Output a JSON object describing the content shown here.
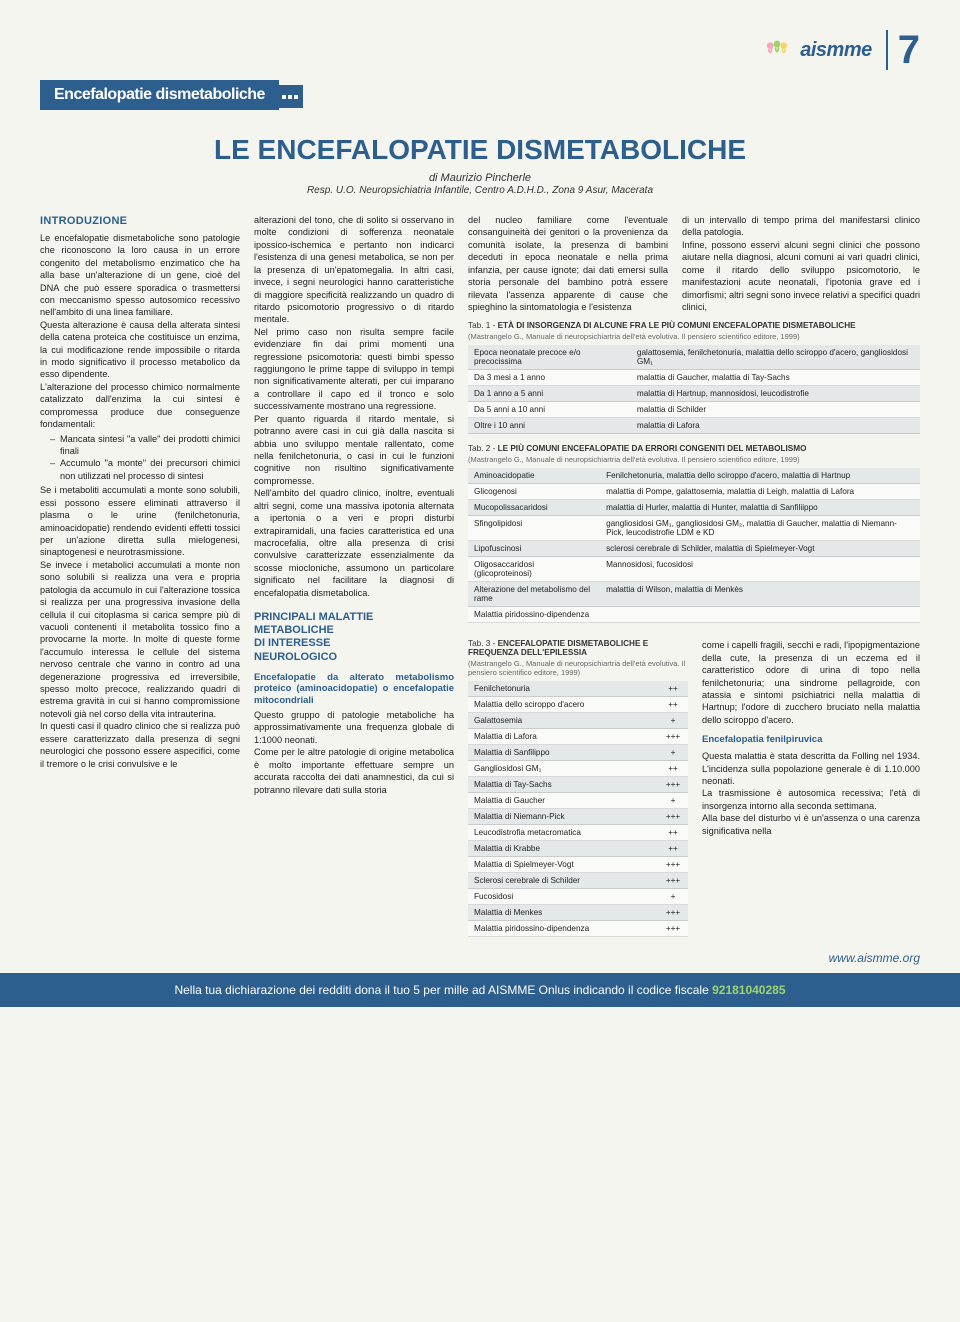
{
  "brand": {
    "name": "aismme",
    "page_num": "7",
    "website": "www.aismme.org"
  },
  "section_tab": "Encefalopatie dismetaboliche",
  "title": "LE ENCEFALOPATIE DISMETABOLICHE",
  "author": "di Maurizio Pincherle",
  "affil": "Resp. U.O. Neuropsichiatria Infantile, Centro A.D.H.D., Zona 9 Asur, Macerata",
  "intro_heading": "INTRODUZIONE",
  "col1_p1": "Le encefalopatie dismetaboliche sono patologie che riconoscono la loro causa in un errore congenito del metabolismo enzimatico che ha alla base un'alterazione di un gene, cioè del DNA che può essere sporadica o trasmettersi con meccanismo spesso autosomico recessivo nell'ambito di una linea familiare.",
  "col1_p2": "Questa alterazione è causa della alterata sintesi della catena proteica che costituisce un enzima, la cui modificazione rende impossibile o ritarda in modo significativo il processo metabolico da esso dipendente.",
  "col1_p3": "L'alterazione del processo chimico normalmente catalizzato dall'enzima la cui sintesi è compromessa produce due conseguenze fondamentali:",
  "col1_li1": "Mancata sintesi \"a valle\" dei prodotti chimici finali",
  "col1_li2": "Accumulo \"a monte\" dei precursori chimici non utilizzati nel processo di sintesi",
  "col1_p4": "Se i metaboliti accumulati a monte sono solubili, essi possono essere eliminati attraverso il plasma o le urine (fenilchetonuria, aminoacidopatie) rendendo evidenti effetti tossici per un'azione diretta sulla mielogenesi, sinaptogenesi e neurotrasmissione.",
  "col1_p5": "Se invece i metabolici accumulati a monte non sono solubili si realizza una vera e propria patologia da accumulo in cui l'alterazione tossica si realizza per una progressiva invasione della cellula il cui citoplasma si carica sempre più di vacuoli contenenti il metabolita tossico fino a provocarne la morte. In molte di queste forme l'accumulo interessa le cellule del sistema nervoso centrale che vanno in contro ad una degenerazione progressiva ed irreversibile, spesso molto precoce, realizzando quadri di estrema gravità in cui si hanno compromissione notevoli già nel corso della vita intrauterina.",
  "col1_p6": "In questi casi il quadro clinico che si realizza può essere caratterizzato dalla presenza di segni neurologici che possono essere aspecifici, come il tremore o le crisi convulsive e le",
  "col2_p1": "alterazioni del tono, che di solito si osservano in molte condizioni di sofferenza neonatale ipossico-ischemica e pertanto non indicarci l'esistenza di una genesi metabolica, se non per la presenza di un'epatomegalia. In altri casi, invece, i segni neurologici hanno caratteristiche di maggiore specificità realizzando un quadro di ritardo psicomotorio progressivo o di ritardo mentale.",
  "col2_p2": "Nel primo caso non risulta sempre facile evidenziare fin dai primi momenti una regressione psicomotoria: questi bimbi spesso raggiungono le prime tappe di sviluppo in tempi non significativamente alterati, per cui imparano a controllare il capo ed il tronco e solo successivamente mostrano una regressione.",
  "col2_p3": "Per quanto riguarda il ritardo mentale, si potranno avere casi in cui già dalla nascita si abbia uno sviluppo mentale rallentato, come nella fenilchetonuria, o casi in cui le funzioni cognitive non risultino significativamente compromesse.",
  "col2_p4": "Nell'ambito del quadro clinico, inoltre, eventuali altri segni, come una massiva ipotonia alternata a ipertonia o a veri e propri disturbi extrapiramidali, una facies caratteristica ed una macrocefalia, oltre alla presenza di crisi convulsive caratterizzate essenzialmente da scosse miocloniche, assumono un particolare significato nel facilitare la diagnosi di encefalopatia dismetabolica.",
  "sec2_heading_l1": "PRINCIPALI MALATTIE",
  "sec2_heading_l2": "METABOLICHE",
  "sec2_heading_l3": "DI INTERESSE",
  "sec2_heading_l4": "NEUROLOGICO",
  "col2_sub1": "Encefalopatie da alterato metabolismo proteico (aminoacidopatie) o encefalopatie mitocondriali",
  "col2_p5": "Questo gruppo di patologie metaboliche ha approssimativamente una frequenza globale di 1:1000 neonati.",
  "col2_p6": "Come per le altre patologie di origine metabolica è molto importante effettuare sempre un accurata raccolta dei dati anamnestici, da cui si potranno rilevare dati sulla storia",
  "col3_p1": "del nucleo familiare come l'eventuale consanguineità dei genitori o la provenienza da comunità isolate, la presenza di bambini deceduti in epoca neonatale e nella prima infanzia, per cause ignote; dai dati emersi sulla storia personale del bambino potrà essere rilevata l'assenza apparente di cause che spieghino la sintomatologia e l'esistenza",
  "col4_p1": "di un intervallo di tempo prima del manifestarsi clinico della patologia.",
  "col4_p2": "Infine, possono esservi alcuni segni clinici che possono aiutare nella diagnosi, alcuni comuni ai vari quadri clinici, come il ritardo dello sviluppo psicomotorio, le manifestazioni acute neonatali, l'ipotonia grave ed i dimorfismi; altri segni sono invece relativi a specifici quadri clinici,",
  "tab1": {
    "title_pre": "Tab. 1 - ",
    "title": "ETÀ DI INSORGENZA DI ALCUNE FRA LE PIÙ COMUNI ENCEFALOPATIE DISMETABOLICHE",
    "sub": "(Mastrangelo G., Manuale di neuropsichiartria dell'età evolutiva. Il pensiero scientifico editore, 1999)",
    "rows": [
      [
        "Epoca neonatale precoce e/o precocissima",
        "galattosemia, fenilchetonuria, malattia dello sciroppo d'acero, gangliosidosi GM₁"
      ],
      [
        "Da 3 mesi a 1 anno",
        "malattia di Gaucher, malattia di Tay-Sachs"
      ],
      [
        "Da 1 anno a 5 anni",
        "malattia di Hartnup, mannosidosi, leucodistrofie"
      ],
      [
        "Da 5 anni a 10 anni",
        "malattia di Schilder"
      ],
      [
        "Oltre i 10 anni",
        "malattia di Lafora"
      ]
    ]
  },
  "tab2": {
    "title_pre": "Tab. 2 - ",
    "title": "LE PIÙ COMUNI ENCEFALOPATIE DA ERRORI CONGENITI DEL METABOLISMO",
    "sub": "(Mastrangelo G., Manuale di neuropsichiartria dell'età evolutiva. Il pensiero scientifico editore, 1999)",
    "rows": [
      [
        "Aminoacidopatie",
        "Fenilchetonuria, malattia dello sciroppo d'acero, malattia di Hartnup"
      ],
      [
        "Glicogenosi",
        "malattia di Pompe, galattosemia, malattia di Leigh, malattia di Lafora"
      ],
      [
        "Mucopolissacaridosi",
        "malattia di Hurler, malattia di Hunter, malattia di Sanfiliippo"
      ],
      [
        "Sfingolipidosi",
        "gangliosidosi GM₁, gangliosidosi GM₂, malattia di Gaucher, malattia di Niemann-Pick, leucodistrofie LDM e KD"
      ],
      [
        "Lipofuscinosi",
        "sclerosi cerebrale di Schilder, malattia di Spielmeyer-Vogt"
      ],
      [
        "Oligosaccaridosi (glicoproteinosi)",
        "Mannosidosi, fucosidosi"
      ],
      [
        "Alterazione del metabolismo del rame",
        "malattia di Wilson, malattia di Menkès"
      ],
      [
        "Malattia piridossino-dipendenza",
        ""
      ]
    ]
  },
  "tab3": {
    "title_pre": "Tab. 3 - ",
    "title": "ENCEFALOPATIE DISMETABOLICHE E FREQUENZA DELL'EPILESSIA",
    "sub": "(Mastrangelo G., Manuale di neuropsichiartria dell'età evolutiva. Il pensiero scientifico editore, 1999)",
    "rows": [
      [
        "Fenilchetonuria",
        "++"
      ],
      [
        "Malattia dello sciroppo d'acero",
        "++"
      ],
      [
        "Galattosemia",
        "+"
      ],
      [
        "Malattia di Lafora",
        "+++"
      ],
      [
        "Malattia di Sanfilippo",
        "+"
      ],
      [
        "Gangliosidosi GM₁",
        "++"
      ],
      [
        "Malattia di Tay-Sachs",
        "+++"
      ],
      [
        "Malattia di Gaucher",
        "+"
      ],
      [
        "Malattia di Niemann-Pick",
        "+++"
      ],
      [
        "Leucodistrofia metacromatica",
        "++"
      ],
      [
        "Malattia di Krabbe",
        "++"
      ],
      [
        "Malattia di Spielmeyer-Vogt",
        "+++"
      ],
      [
        "Sclerosi cerebrale di Schilder",
        "+++"
      ],
      [
        "Fucosidosi",
        "+"
      ],
      [
        "Malattia di Menkes",
        "+++"
      ],
      [
        "Malattia piridossino-dipendenza",
        "+++"
      ]
    ]
  },
  "colR_p1": "come i capelli fragili, secchi e radi, l'ipopigmentazione della cute, la presenza di un eczema ed il caratteristico odore di urina di topo nella fenilchetonuria; una sindrome pellagroide, con atassia e sintomi psichiatrici nella malattia di Hartnup; l'odore di zucchero bruciato nella malattia dello sciroppo d'acero.",
  "colR_h": "Encefalopatia fenilpiruvica",
  "colR_p2": "Questa malattia è stata descritta da Folling nel 1934. L'incidenza sulla popolazione generale è di 1.10.000 neonati.",
  "colR_p3": "La trasmissione è autosomica recessiva; l'età di insorgenza intorno alla seconda settimana.",
  "colR_p4": "Alla base del disturbo vi è un'assenza o una carenza significativa nella",
  "footer_pre": "Nella tua dichiarazione dei redditi dona il tuo 5 per mille ad AISMME Onlus indicando il codice fiscale ",
  "footer_code": "92181040285"
}
